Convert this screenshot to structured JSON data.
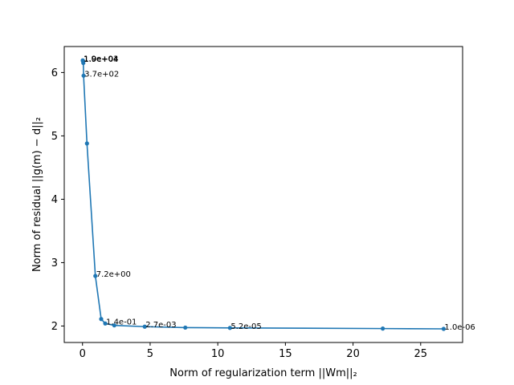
{
  "chart_data": {
    "type": "line",
    "title": "",
    "xlabel": "Norm of regularization term ||Wm||₂",
    "ylabel": "Norm of residual ||g(m) − d||₂",
    "xlim": [
      -1.35,
      28.1
    ],
    "ylim": [
      1.74,
      6.41
    ],
    "xticks": [
      0,
      5,
      10,
      15,
      20,
      25
    ],
    "yticks": [
      2,
      3,
      4,
      5,
      6
    ],
    "grid": false,
    "legend": "none",
    "series": [
      {
        "color": "#1f77b4",
        "marker": "circle",
        "points": [
          {
            "x": 0.02,
            "y": 6.19,
            "label": "1.0e+04"
          },
          {
            "x": 0.02,
            "y": 6.19,
            "label": "1.9e+03"
          },
          {
            "x": 0.04,
            "y": 6.18,
            "label": "1.9e+04"
          },
          {
            "x": 0.06,
            "y": 6.15,
            "label": ""
          },
          {
            "x": 0.08,
            "y": 5.95,
            "label": "3.7e+02"
          },
          {
            "x": 0.33,
            "y": 4.88,
            "label": ""
          },
          {
            "x": 0.95,
            "y": 2.79,
            "label": "7.2e+00"
          },
          {
            "x": 1.38,
            "y": 2.11,
            "label": ""
          },
          {
            "x": 1.68,
            "y": 2.04,
            "label": "1.4e-01"
          },
          {
            "x": 2.35,
            "y": 2.01,
            "label": ""
          },
          {
            "x": 4.6,
            "y": 1.99,
            "label": "2.7e-03"
          },
          {
            "x": 7.6,
            "y": 1.975,
            "label": ""
          },
          {
            "x": 10.9,
            "y": 1.97,
            "label": "5.2e-05"
          },
          {
            "x": 22.2,
            "y": 1.96,
            "label": ""
          },
          {
            "x": 26.7,
            "y": 1.955,
            "label": "1.0e-06"
          }
        ]
      }
    ]
  }
}
